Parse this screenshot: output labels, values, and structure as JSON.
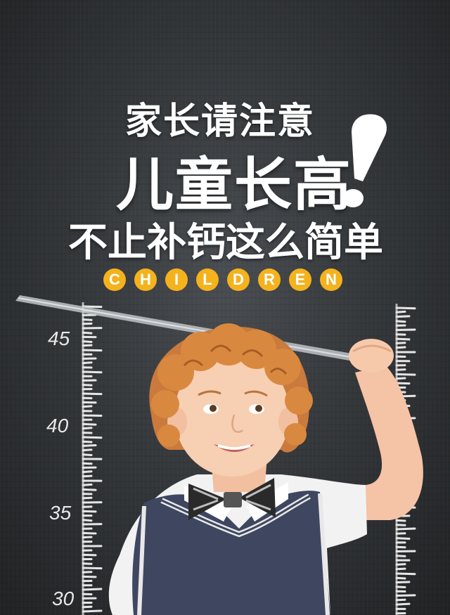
{
  "headline": {
    "line1": "家长请注意",
    "line2": "儿童长高",
    "line3": "不止补钙这么简单"
  },
  "children_letters": [
    "C",
    "H",
    "I",
    "L",
    "D",
    "R",
    "E",
    "N"
  ],
  "ruler_left": {
    "labels": [
      "45",
      "40",
      "35",
      "30"
    ]
  },
  "colors": {
    "badge": "#f4b21d",
    "text": "#ffffff",
    "board": "#35383b"
  }
}
